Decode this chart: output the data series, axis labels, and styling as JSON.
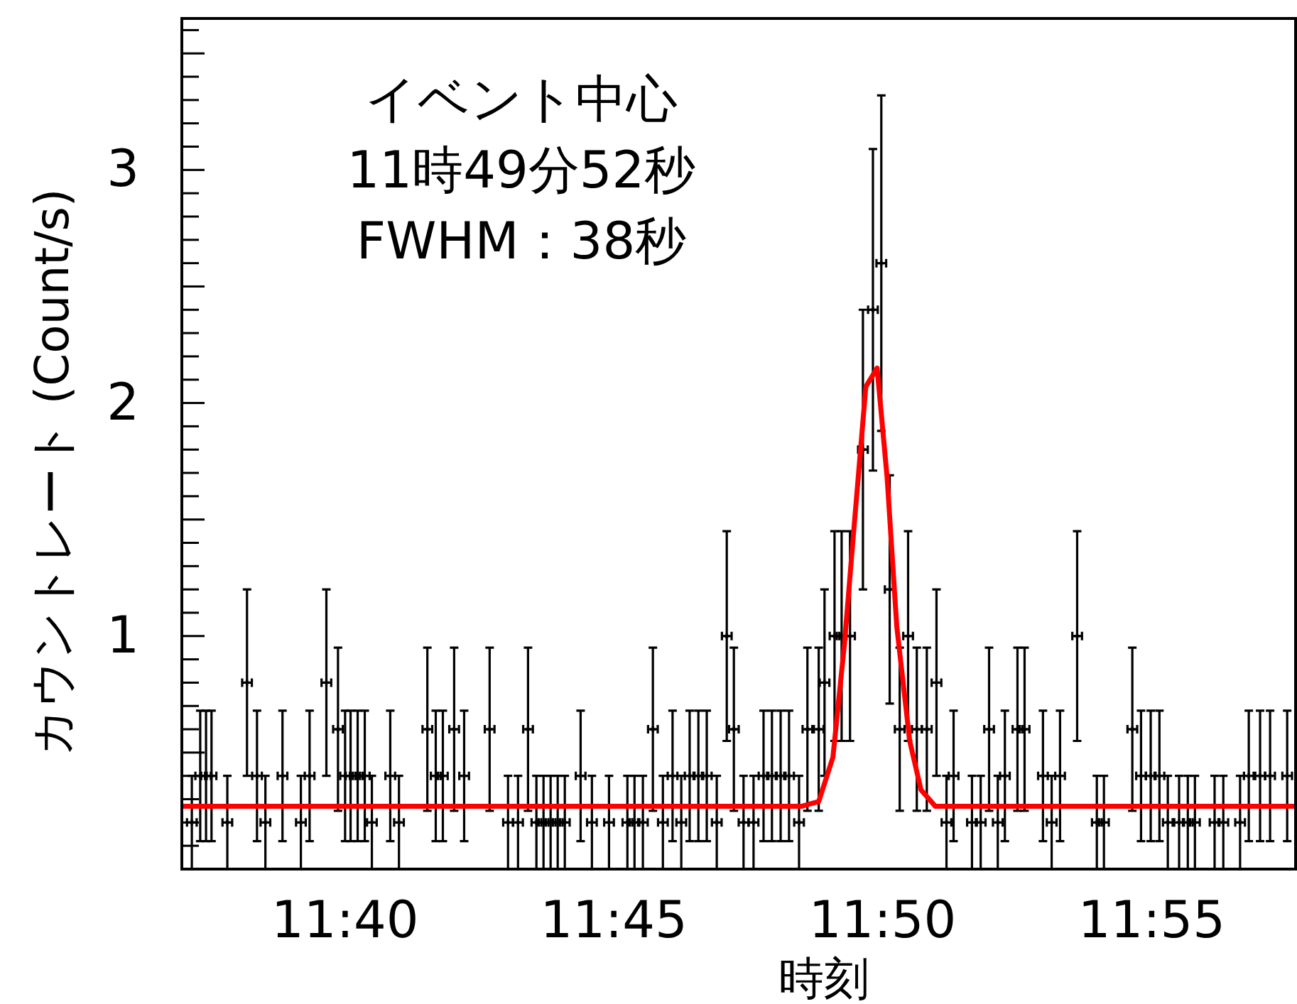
{
  "chart_data": {
    "type": "scatter",
    "xlabel": "時刻",
    "ylabel": "カウントレート (Count/s)",
    "annotations": [
      "イベント中心",
      "11時49分52秒",
      "FWHM：38秒"
    ],
    "xlim": [
      11.6161,
      11.9613
    ],
    "ylim": [
      0,
      3.65
    ],
    "xticks": [
      {
        "value": 11.6667,
        "label": "11:40"
      },
      {
        "value": 11.75,
        "label": "11:45"
      },
      {
        "value": 11.8333,
        "label": "11:50"
      },
      {
        "value": 11.9167,
        "label": "11:55"
      }
    ],
    "yticks": [
      {
        "value": 0.1,
        "label": null
      },
      {
        "value": 0.2,
        "label": null
      },
      {
        "value": 0.3,
        "label": null
      },
      {
        "value": 0.4,
        "label": null
      },
      {
        "value": 0.5,
        "label": null
      },
      {
        "value": 0.6,
        "label": null
      },
      {
        "value": 0.7,
        "label": null
      },
      {
        "value": 0.8,
        "label": null
      },
      {
        "value": 0.9,
        "label": null
      },
      1,
      {
        "value": 1.1,
        "label": null
      },
      {
        "value": 1.2,
        "label": null
      },
      {
        "value": 1.3,
        "label": null
      },
      {
        "value": 1.4,
        "label": null
      },
      {
        "value": 1.5,
        "label": null
      },
      {
        "value": 1.6,
        "label": null
      },
      {
        "value": 1.7,
        "label": null
      },
      {
        "value": 1.8,
        "label": null
      },
      {
        "value": 1.9,
        "label": null
      },
      2,
      {
        "value": 2.1,
        "label": null
      },
      {
        "value": 2.2,
        "label": null
      },
      {
        "value": 2.3,
        "label": null
      },
      {
        "value": 2.4,
        "label": null
      },
      {
        "value": 2.5,
        "label": null
      },
      {
        "value": 2.6,
        "label": null
      },
      {
        "value": 2.7,
        "label": null
      },
      {
        "value": 2.8,
        "label": null
      },
      {
        "value": 2.9,
        "label": null
      },
      3,
      {
        "value": 3.1,
        "label": null
      },
      {
        "value": 3.2,
        "label": null
      },
      {
        "value": 3.3,
        "label": null
      },
      {
        "value": 3.4,
        "label": null
      },
      {
        "value": 3.5,
        "label": null
      },
      {
        "value": 3.6,
        "label": null
      }
    ],
    "grid": false,
    "legend": false,
    "series": [
      {
        "type": "scatter",
        "color": "#000000",
        "marker": "cross",
        "x": [
          11.6192,
          11.6218,
          11.6236,
          11.6253,
          11.6302,
          11.6363,
          11.6394,
          11.642,
          11.6473,
          11.653,
          11.6557,
          11.6609,
          11.6645,
          11.6667,
          11.6684,
          11.6706,
          11.6728,
          11.675,
          11.6807,
          11.6834,
          11.6922,
          11.6948,
          11.697,
          11.7005,
          11.7036,
          11.7115,
          11.7172,
          11.7203,
          11.7234,
          11.726,
          11.7282,
          11.7304,
          11.7326,
          11.7348,
          11.7397,
          11.7432,
          11.7485,
          11.7542,
          11.7564,
          11.759,
          11.7621,
          11.7652,
          11.7682,
          11.7709,
          11.7735,
          11.7762,
          11.7788,
          11.7819,
          11.785,
          11.7872,
          11.7902,
          11.7933,
          11.7964,
          11.799,
          11.8017,
          11.8043,
          11.8074,
          11.81,
          11.8135,
          11.8153,
          11.8184,
          11.8206,
          11.8232,
          11.8272,
          11.8303,
          11.8329,
          11.8355,
          11.8386,
          11.8412,
          11.8439,
          11.847,
          11.85,
          11.8531,
          11.8553,
          11.861,
          11.8637,
          11.8663,
          11.869,
          11.8712,
          11.8751,
          11.8773,
          11.883,
          11.8857,
          11.8883,
          11.8936,
          11.8997,
          11.9019,
          11.9107,
          11.9134,
          11.9164,
          11.9191,
          11.9217,
          11.9252,
          11.9279,
          11.9301,
          11.9362,
          11.9389,
          11.9441,
          11.9468,
          11.9503,
          11.9534,
          11.9587
        ],
        "values": [
          0.2,
          0.4,
          0.4,
          0.4,
          0.2,
          0.8,
          0.4,
          0.2,
          0.4,
          0.2,
          0.4,
          0.8,
          0.6,
          0.4,
          0.4,
          0.4,
          0.4,
          0.2,
          0.4,
          0.2,
          0.6,
          0.4,
          0.4,
          0.6,
          0.4,
          0.6,
          0.2,
          0.2,
          0.6,
          0.2,
          0.2,
          0.2,
          0.2,
          0.2,
          0.4,
          0.2,
          0.2,
          0.2,
          0.2,
          0.2,
          0.6,
          0.2,
          0.4,
          0.2,
          0.4,
          0.4,
          0.4,
          0.2,
          1.0,
          0.6,
          0.2,
          0.2,
          0.4,
          0.4,
          0.4,
          0.4,
          0.2,
          0.6,
          0.6,
          0.8,
          1.0,
          1.0,
          1.0,
          1.8,
          2.4,
          2.6,
          1.2,
          0.6,
          1.0,
          0.6,
          0.6,
          0.8,
          0.2,
          0.4,
          0.2,
          0.2,
          0.6,
          0.2,
          0.4,
          0.6,
          0.6,
          0.4,
          0.2,
          0.4,
          1.0,
          0.2,
          0.2,
          0.6,
          0.4,
          0.4,
          0.4,
          0.2,
          0.2,
          0.2,
          0.2,
          0.2,
          0.2,
          0.2,
          0.4,
          0.4,
          0.4,
          0.4
        ],
        "errors": [
          0.2,
          0.28,
          0.28,
          0.28,
          0.2,
          0.4,
          0.28,
          0.2,
          0.28,
          0.2,
          0.28,
          0.4,
          0.35,
          0.28,
          0.28,
          0.28,
          0.28,
          0.2,
          0.28,
          0.2,
          0.35,
          0.28,
          0.28,
          0.35,
          0.28,
          0.35,
          0.2,
          0.2,
          0.35,
          0.2,
          0.2,
          0.2,
          0.2,
          0.2,
          0.28,
          0.2,
          0.2,
          0.2,
          0.2,
          0.2,
          0.35,
          0.2,
          0.28,
          0.2,
          0.28,
          0.28,
          0.28,
          0.2,
          0.45,
          0.35,
          0.2,
          0.2,
          0.28,
          0.28,
          0.28,
          0.28,
          0.2,
          0.35,
          0.35,
          0.4,
          0.45,
          0.45,
          0.45,
          0.6,
          0.69,
          0.72,
          0.49,
          0.35,
          0.45,
          0.35,
          0.35,
          0.4,
          0.2,
          0.28,
          0.2,
          0.2,
          0.35,
          0.2,
          0.28,
          0.35,
          0.35,
          0.28,
          0.2,
          0.28,
          0.45,
          0.2,
          0.2,
          0.35,
          0.28,
          0.28,
          0.28,
          0.2,
          0.2,
          0.2,
          0.2,
          0.2,
          0.2,
          0.2,
          0.28,
          0.28,
          0.28,
          0.28
        ],
        "xerrors": [
          0.0015,
          0.0015,
          0.0015,
          0.0015,
          0.0015,
          0.0015,
          0.0015,
          0.0015,
          0.0015,
          0.0015,
          0.0015,
          0.0015,
          0.0015,
          0.0015,
          0.0015,
          0.0015,
          0.0015,
          0.0015,
          0.0015,
          0.0015,
          0.0015,
          0.0015,
          0.0015,
          0.0015,
          0.0015,
          0.0015,
          0.0015,
          0.0015,
          0.0015,
          0.0015,
          0.0015,
          0.0015,
          0.0015,
          0.0015,
          0.0015,
          0.0015,
          0.0015,
          0.0015,
          0.0015,
          0.0015,
          0.0015,
          0.0015,
          0.0015,
          0.0015,
          0.0015,
          0.0015,
          0.0015,
          0.0015,
          0.0015,
          0.0015,
          0.0015,
          0.0015,
          0.0015,
          0.0015,
          0.0015,
          0.0015,
          0.0015,
          0.0015,
          0.0015,
          0.0015,
          0.0015,
          0.0015,
          0.0015,
          0.0015,
          0.0015,
          0.0015,
          0.0015,
          0.0015,
          0.0015,
          0.0015,
          0.0015,
          0.0015,
          0.0015,
          0.0015,
          0.0015,
          0.0015,
          0.0015,
          0.0015,
          0.0015,
          0.0015,
          0.0015,
          0.0015,
          0.0015,
          0.0015,
          0.0015,
          0.0015,
          0.0015,
          0.0015,
          0.0015,
          0.0015,
          0.0015,
          0.0015,
          0.0015,
          0.0015,
          0.0015,
          0.0015,
          0.0015,
          0.0015,
          0.0015,
          0.0015,
          0.0015,
          0.0015
        ]
      },
      {
        "type": "line",
        "color": "#ff0000",
        "marker": "none",
        "x": [
          11.6161,
          11.8083,
          11.8135,
          11.8179,
          11.8215,
          11.8241,
          11.8281,
          11.8316,
          11.8347,
          11.8377,
          11.8417,
          11.8452,
          11.8496,
          11.9613
        ],
        "values": [
          0.27,
          0.27,
          0.29,
          0.48,
          0.97,
          1.41,
          2.07,
          2.15,
          1.68,
          1.04,
          0.55,
          0.34,
          0.27,
          0.27
        ]
      }
    ]
  }
}
